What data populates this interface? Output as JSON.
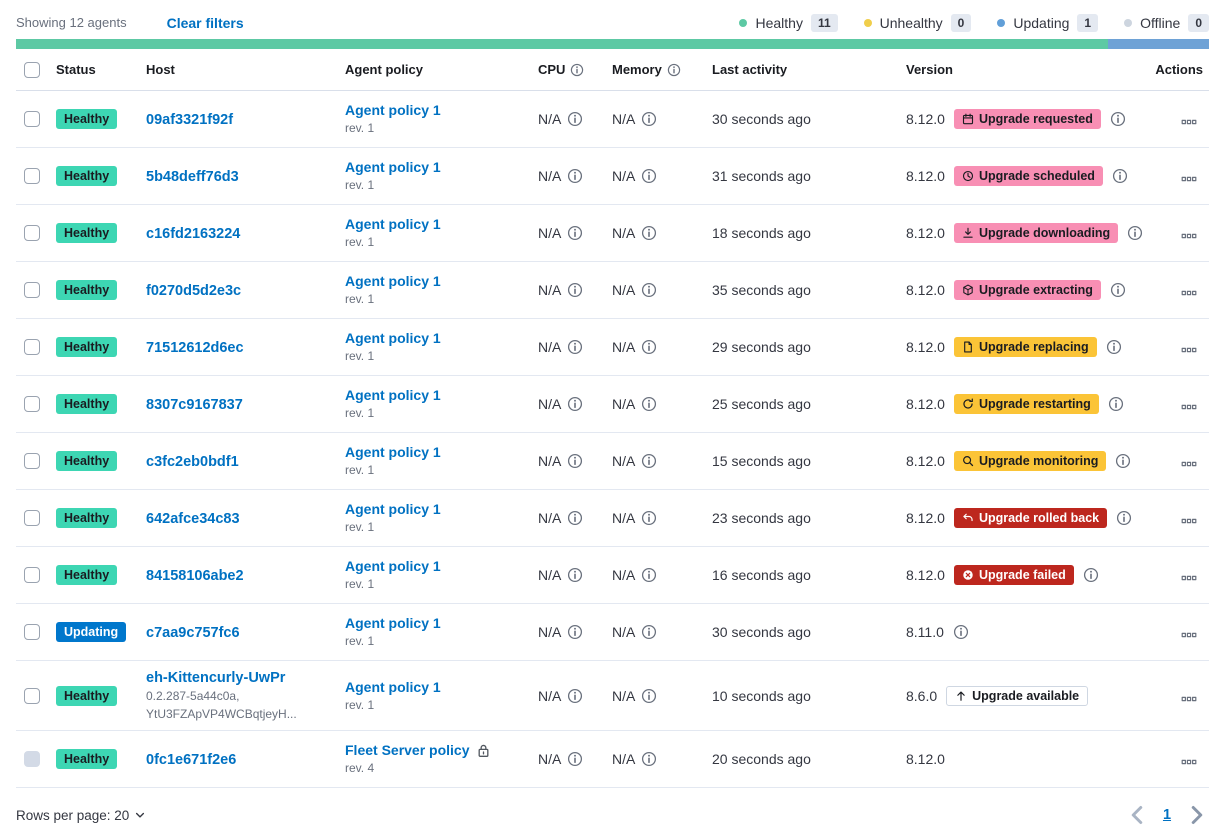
{
  "toolbar": {
    "showing_label": "Showing 12 agents",
    "clear_filters_label": "Clear filters",
    "legend": [
      {
        "label": "Healthy",
        "count": "11",
        "dot_color": "#5DC9A4"
      },
      {
        "label": "Unhealthy",
        "count": "0",
        "dot_color": "#F0CE4B"
      },
      {
        "label": "Updating",
        "count": "1",
        "dot_color": "#619FD8"
      },
      {
        "label": "Offline",
        "count": "0",
        "dot_color": "#CDD5DF"
      }
    ],
    "progress_bar": [
      {
        "status": "healthy",
        "color": "#5DC9A4",
        "percent": 91.5
      },
      {
        "status": "updating",
        "color": "#6EA2D6",
        "percent": 8.5
      }
    ]
  },
  "colors": {
    "badge_variants": {
      "accent": {
        "bg": "#F88FB4",
        "text": "#1A1C21",
        "border": "none"
      },
      "warning": {
        "bg": "#FBC437",
        "text": "#1A1C21",
        "border": "none"
      },
      "danger": {
        "bg": "#BD271E",
        "text": "#FFFFFF",
        "border": "none"
      },
      "hollow": {
        "bg": "#FFFFFF",
        "text": "#1A1C21",
        "border": "#CFD7E2"
      }
    },
    "status_variants": {
      "healthy": {
        "bg": "#3DD6B3",
        "text": "#1A1C21"
      },
      "updating": {
        "bg": "#0077CC",
        "text": "#FFFFFF"
      }
    }
  },
  "table": {
    "headers": {
      "status": "Status",
      "host": "Host",
      "policy": "Agent policy",
      "cpu": "CPU",
      "memory": "Memory",
      "last_activity": "Last activity",
      "version": "Version",
      "actions": "Actions"
    },
    "rows": [
      {
        "status": {
          "label": "Healthy",
          "variant": "healthy"
        },
        "host": {
          "name": "09af3321f92f",
          "sub": []
        },
        "policy": {
          "name": "Agent policy 1",
          "rev": "rev. 1",
          "locked": false
        },
        "cpu": "N/A",
        "memory": "N/A",
        "last_activity": "30 seconds ago",
        "version": "8.12.0",
        "upgrade_badge": {
          "label": "Upgrade requested",
          "icon": "calendar-icon",
          "variant": "accent"
        },
        "badge_info_icon": true,
        "version_info_icon": false,
        "checkbox_disabled": false
      },
      {
        "status": {
          "label": "Healthy",
          "variant": "healthy"
        },
        "host": {
          "name": "5b48deff76d3",
          "sub": []
        },
        "policy": {
          "name": "Agent policy 1",
          "rev": "rev. 1",
          "locked": false
        },
        "cpu": "N/A",
        "memory": "N/A",
        "last_activity": "31 seconds ago",
        "version": "8.12.0",
        "upgrade_badge": {
          "label": "Upgrade scheduled",
          "icon": "clock-icon",
          "variant": "accent"
        },
        "badge_info_icon": true,
        "version_info_icon": false,
        "checkbox_disabled": false
      },
      {
        "status": {
          "label": "Healthy",
          "variant": "healthy"
        },
        "host": {
          "name": "c16fd2163224",
          "sub": []
        },
        "policy": {
          "name": "Agent policy 1",
          "rev": "rev. 1",
          "locked": false
        },
        "cpu": "N/A",
        "memory": "N/A",
        "last_activity": "18 seconds ago",
        "version": "8.12.0",
        "upgrade_badge": {
          "label": "Upgrade downloading",
          "icon": "download-icon",
          "variant": "accent"
        },
        "badge_info_icon": true,
        "version_info_icon": false,
        "checkbox_disabled": false
      },
      {
        "status": {
          "label": "Healthy",
          "variant": "healthy"
        },
        "host": {
          "name": "f0270d5d2e3c",
          "sub": []
        },
        "policy": {
          "name": "Agent policy 1",
          "rev": "rev. 1",
          "locked": false
        },
        "cpu": "N/A",
        "memory": "N/A",
        "last_activity": "35 seconds ago",
        "version": "8.12.0",
        "upgrade_badge": {
          "label": "Upgrade extracting",
          "icon": "package-icon",
          "variant": "accent"
        },
        "badge_info_icon": true,
        "version_info_icon": false,
        "checkbox_disabled": false
      },
      {
        "status": {
          "label": "Healthy",
          "variant": "healthy"
        },
        "host": {
          "name": "71512612d6ec",
          "sub": []
        },
        "policy": {
          "name": "Agent policy 1",
          "rev": "rev. 1",
          "locked": false
        },
        "cpu": "N/A",
        "memory": "N/A",
        "last_activity": "29 seconds ago",
        "version": "8.12.0",
        "upgrade_badge": {
          "label": "Upgrade replacing",
          "icon": "document-icon",
          "variant": "warning"
        },
        "badge_info_icon": true,
        "version_info_icon": false,
        "checkbox_disabled": false
      },
      {
        "status": {
          "label": "Healthy",
          "variant": "healthy"
        },
        "host": {
          "name": "8307c9167837",
          "sub": []
        },
        "policy": {
          "name": "Agent policy 1",
          "rev": "rev. 1",
          "locked": false
        },
        "cpu": "N/A",
        "memory": "N/A",
        "last_activity": "25 seconds ago",
        "version": "8.12.0",
        "upgrade_badge": {
          "label": "Upgrade restarting",
          "icon": "refresh-icon",
          "variant": "warning"
        },
        "badge_info_icon": true,
        "version_info_icon": false,
        "checkbox_disabled": false
      },
      {
        "status": {
          "label": "Healthy",
          "variant": "healthy"
        },
        "host": {
          "name": "c3fc2eb0bdf1",
          "sub": []
        },
        "policy": {
          "name": "Agent policy 1",
          "rev": "rev. 1",
          "locked": false
        },
        "cpu": "N/A",
        "memory": "N/A",
        "last_activity": "15 seconds ago",
        "version": "8.12.0",
        "upgrade_badge": {
          "label": "Upgrade monitoring",
          "icon": "inspect-icon",
          "variant": "warning"
        },
        "badge_info_icon": true,
        "version_info_icon": false,
        "checkbox_disabled": false
      },
      {
        "status": {
          "label": "Healthy",
          "variant": "healthy"
        },
        "host": {
          "name": "642afce34c83",
          "sub": []
        },
        "policy": {
          "name": "Agent policy 1",
          "rev": "rev. 1",
          "locked": false
        },
        "cpu": "N/A",
        "memory": "N/A",
        "last_activity": "23 seconds ago",
        "version": "8.12.0",
        "upgrade_badge": {
          "label": "Upgrade rolled back",
          "icon": "return-arrow-icon",
          "variant": "danger"
        },
        "badge_info_icon": true,
        "version_info_icon": false,
        "checkbox_disabled": false
      },
      {
        "status": {
          "label": "Healthy",
          "variant": "healthy"
        },
        "host": {
          "name": "84158106abe2",
          "sub": []
        },
        "policy": {
          "name": "Agent policy 1",
          "rev": "rev. 1",
          "locked": false
        },
        "cpu": "N/A",
        "memory": "N/A",
        "last_activity": "16 seconds ago",
        "version": "8.12.0",
        "upgrade_badge": {
          "label": "Upgrade failed",
          "icon": "cross-in-circle-icon",
          "variant": "danger"
        },
        "badge_info_icon": true,
        "version_info_icon": false,
        "checkbox_disabled": false
      },
      {
        "status": {
          "label": "Updating",
          "variant": "updating"
        },
        "host": {
          "name": "c7aa9c757fc6",
          "sub": []
        },
        "policy": {
          "name": "Agent policy 1",
          "rev": "rev. 1",
          "locked": false
        },
        "cpu": "N/A",
        "memory": "N/A",
        "last_activity": "30 seconds ago",
        "version": "8.11.0",
        "upgrade_badge": null,
        "badge_info_icon": false,
        "version_info_icon": true,
        "checkbox_disabled": false
      },
      {
        "status": {
          "label": "Healthy",
          "variant": "healthy"
        },
        "host": {
          "name": "eh-Kittencurly-UwPr",
          "sub": [
            "0.2.287-5a44c0a,",
            "YtU3FZApVP4WCBqtjeyH..."
          ]
        },
        "policy": {
          "name": "Agent policy 1",
          "rev": "rev. 1",
          "locked": false
        },
        "cpu": "N/A",
        "memory": "N/A",
        "last_activity": "10 seconds ago",
        "version": "8.6.0",
        "upgrade_badge": {
          "label": "Upgrade available",
          "icon": "arrow-up-icon",
          "variant": "hollow"
        },
        "badge_info_icon": false,
        "version_info_icon": false,
        "checkbox_disabled": false
      },
      {
        "status": {
          "label": "Healthy",
          "variant": "healthy"
        },
        "host": {
          "name": "0fc1e671f2e6",
          "sub": []
        },
        "policy": {
          "name": "Fleet Server policy",
          "rev": "rev. 4",
          "locked": true
        },
        "cpu": "N/A",
        "memory": "N/A",
        "last_activity": "20 seconds ago",
        "version": "8.12.0",
        "upgrade_badge": null,
        "badge_info_icon": false,
        "version_info_icon": false,
        "checkbox_disabled": true
      }
    ]
  },
  "footer": {
    "rows_per_page_label": "Rows per page: 20",
    "page": "1"
  }
}
